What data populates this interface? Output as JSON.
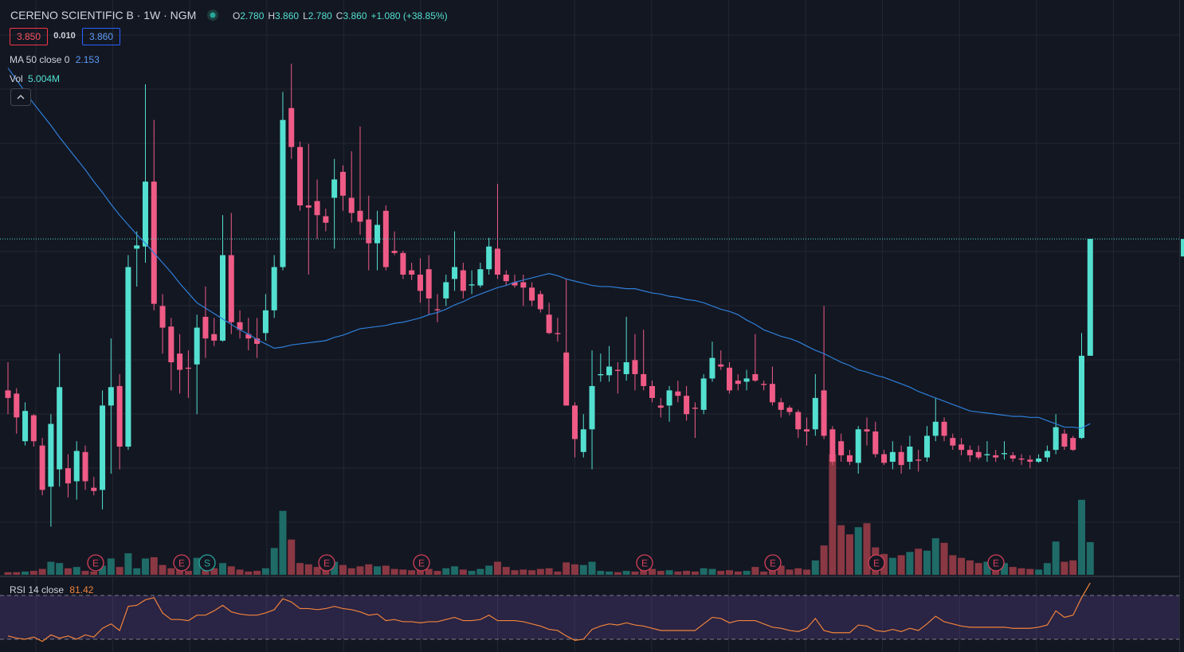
{
  "chart_data": {
    "type": "candlestick",
    "title": "CERENO SCIENTIFIC B · 1W · NGM",
    "ohlc_legend": [
      {
        "label": "O",
        "value": "2.780"
      },
      {
        "label": "H",
        "value": "3.860"
      },
      {
        "label": "L",
        "value": "2.780"
      },
      {
        "label": "C",
        "value": "3.860"
      }
    ],
    "change": "+1.080 (+38.85%)",
    "bid": "3.850",
    "spread": "0.010",
    "ask": "3.860",
    "up_color": "#53e0d0",
    "down_color": "#ef5b86",
    "ylim": [
      0.77,
      6.01
    ],
    "open": [
      2.46,
      2.43,
      1.99,
      2.23,
      1.95,
      1.57,
      1.73,
      1.74,
      1.62,
      1.89,
      1.56,
      1.54,
      2.32,
      2.5,
      1.94,
      3.77,
      3.79,
      4.39,
      3.24,
      3.05,
      2.8,
      2.67,
      2.7,
      3.14,
      2.98,
      2.92,
      3.71,
      3.09,
      2.98,
      2.94,
      2.99,
      3.2,
      3.6,
      5.07,
      4.71,
      4.17,
      4.21,
      4.07,
      4.24,
      4.48,
      4.24,
      4.12,
      4.04,
      3.82,
      4.12,
      3.75,
      3.73,
      3.57,
      3.53,
      3.58,
      3.21,
      3.31,
      3.49,
      3.57,
      3.43,
      3.43,
      3.58,
      3.77,
      3.53,
      3.46,
      3.46,
      3.41,
      3.35,
      3.16,
      2.99,
      2.81,
      2.32,
      1.89,
      2.1,
      2.6,
      2.6,
      2.65,
      2.61,
      2.74,
      2.61,
      2.5,
      2.32,
      2.32,
      2.45,
      2.41,
      2.3,
      2.28,
      2.57,
      2.7,
      2.67,
      2.55,
      2.54,
      2.61,
      2.52,
      2.52,
      2.35,
      2.3,
      2.26,
      2.1,
      2.1,
      2.46,
      2.1,
      1.99,
      1.86,
      1.79,
      2.1,
      2.08,
      1.87,
      1.8,
      1.89,
      1.8,
      1.82,
      1.84,
      2.04,
      2.17,
      2.02,
      1.96,
      1.91,
      1.89,
      1.86,
      1.86,
      1.87,
      1.86,
      1.83,
      1.82,
      1.8,
      1.84,
      1.91,
      2.06,
      2.02,
      2.02,
      2.78
    ],
    "high": [
      2.72,
      2.48,
      2.35,
      2.24,
      2.02,
      2.24,
      2.8,
      1.87,
      1.99,
      1.95,
      1.66,
      2.46,
      2.94,
      2.61,
      3.71,
      3.93,
      5.29,
      4.96,
      3.35,
      3.13,
      2.98,
      2.83,
      3.16,
      3.42,
      3.13,
      4.08,
      4.1,
      3.2,
      3.13,
      3.13,
      3.35,
      3.71,
      5.22,
      5.48,
      4.76,
      4.74,
      4.41,
      4.14,
      4.6,
      4.54,
      4.67,
      4.9,
      4.26,
      4.12,
      4.17,
      3.93,
      3.75,
      3.64,
      3.68,
      3.71,
      3.35,
      3.53,
      3.93,
      3.64,
      3.57,
      3.64,
      3.87,
      4.37,
      3.57,
      3.53,
      3.53,
      3.46,
      3.38,
      3.27,
      3.13,
      3.49,
      2.35,
      2.24,
      2.83,
      2.8,
      2.87,
      2.72,
      3.14,
      2.98,
      3.02,
      2.55,
      2.39,
      2.5,
      2.55,
      2.5,
      2.35,
      2.61,
      2.91,
      2.83,
      2.72,
      2.61,
      2.65,
      2.98,
      2.55,
      2.68,
      2.39,
      2.32,
      2.28,
      2.21,
      2.61,
      3.24,
      2.13,
      2.06,
      1.91,
      2.13,
      2.21,
      2.17,
      1.91,
      1.99,
      1.95,
      2.04,
      1.91,
      2.13,
      2.39,
      2.21,
      2.06,
      2.02,
      1.95,
      1.95,
      1.99,
      1.91,
      1.99,
      1.89,
      1.87,
      1.86,
      1.87,
      1.95,
      2.24,
      2.1,
      2.04,
      2.99,
      3.86
    ],
    "low": [
      2.24,
      2.06,
      1.95,
      1.94,
      1.49,
      1.2,
      1.57,
      1.47,
      1.45,
      1.54,
      1.49,
      1.36,
      1.69,
      1.73,
      1.91,
      3.42,
      3.64,
      3.2,
      2.8,
      2.46,
      2.43,
      2.39,
      2.24,
      2.76,
      2.87,
      2.91,
      2.98,
      2.94,
      2.83,
      2.76,
      2.92,
      3.13,
      3.57,
      4.6,
      4.12,
      3.53,
      3.86,
      3.93,
      3.77,
      4.12,
      4.01,
      3.9,
      3.57,
      3.57,
      3.57,
      3.71,
      3.49,
      3.48,
      3.27,
      3.16,
      3.09,
      3.24,
      3.38,
      3.31,
      3.35,
      3.41,
      3.53,
      3.49,
      3.43,
      3.41,
      3.24,
      3.24,
      3.18,
      2.98,
      2.91,
      2.32,
      1.84,
      1.84,
      1.73,
      2.54,
      2.54,
      2.43,
      2.55,
      2.46,
      2.46,
      2.35,
      2.21,
      2.17,
      2.35,
      2.18,
      2.02,
      2.24,
      2.54,
      2.65,
      2.43,
      2.46,
      2.46,
      2.54,
      2.46,
      2.32,
      2.21,
      2.23,
      2.02,
      1.95,
      2.04,
      2.01,
      1.77,
      1.8,
      1.77,
      1.69,
      1.95,
      1.84,
      1.77,
      1.73,
      1.69,
      1.73,
      1.71,
      1.8,
      1.99,
      1.99,
      1.91,
      1.86,
      1.8,
      1.82,
      1.8,
      1.8,
      1.82,
      1.8,
      1.77,
      1.74,
      1.79,
      1.8,
      1.87,
      1.91,
      1.9,
      2.01,
      2.78
    ],
    "close": [
      2.39,
      2.21,
      2.27,
      1.99,
      1.54,
      2.15,
      2.49,
      1.6,
      1.9,
      1.62,
      1.53,
      2.32,
      2.49,
      1.94,
      3.6,
      3.8,
      4.39,
      3.26,
      3.04,
      2.72,
      2.65,
      2.66,
      3.04,
      2.94,
      2.92,
      3.71,
      3.09,
      3.02,
      2.94,
      2.89,
      3.2,
      3.6,
      4.96,
      4.71,
      4.17,
      4.15,
      4.08,
      4.01,
      4.41,
      4.26,
      4.1,
      4.02,
      3.82,
      3.99,
      3.6,
      3.73,
      3.53,
      3.53,
      3.38,
      3.31,
      3.2,
      3.46,
      3.6,
      3.38,
      3.44,
      3.58,
      3.79,
      3.53,
      3.47,
      3.43,
      3.41,
      3.29,
      3.21,
      2.99,
      2.98,
      2.32,
      2.01,
      2.1,
      2.5,
      2.61,
      2.68,
      2.64,
      2.72,
      2.61,
      2.5,
      2.39,
      2.3,
      2.46,
      2.41,
      2.24,
      2.29,
      2.57,
      2.76,
      2.68,
      2.46,
      2.52,
      2.57,
      2.55,
      2.51,
      2.35,
      2.28,
      2.26,
      2.1,
      2.08,
      2.39,
      2.04,
      1.8,
      1.86,
      1.8,
      2.1,
      2.08,
      1.87,
      1.79,
      1.89,
      1.77,
      1.94,
      1.81,
      2.04,
      2.17,
      2.04,
      1.95,
      1.91,
      1.86,
      1.84,
      1.87,
      1.84,
      1.88,
      1.83,
      1.82,
      1.8,
      1.83,
      1.9,
      2.12,
      1.94,
      1.91,
      2.78,
      3.86
    ],
    "ma": {
      "name": "MA 50 close 0",
      "color": "#2f7fd8",
      "values": [
        5.44,
        5.33,
        5.22,
        5.11,
        5.01,
        4.91,
        4.8,
        4.7,
        4.6,
        4.5,
        4.39,
        4.29,
        4.18,
        4.08,
        3.99,
        3.9,
        3.82,
        3.73,
        3.64,
        3.55,
        3.45,
        3.36,
        3.27,
        3.22,
        3.17,
        3.12,
        3.07,
        3.02,
        2.98,
        2.93,
        2.89,
        2.85,
        2.86,
        2.88,
        2.89,
        2.9,
        2.91,
        2.92,
        2.95,
        2.97,
        3.0,
        3.03,
        3.04,
        3.05,
        3.06,
        3.08,
        3.09,
        3.11,
        3.13,
        3.16,
        3.18,
        3.21,
        3.25,
        3.28,
        3.32,
        3.35,
        3.38,
        3.41,
        3.43,
        3.46,
        3.48,
        3.5,
        3.52,
        3.54,
        3.52,
        3.49,
        3.47,
        3.45,
        3.43,
        3.42,
        3.42,
        3.41,
        3.4,
        3.4,
        3.38,
        3.36,
        3.35,
        3.33,
        3.32,
        3.3,
        3.29,
        3.27,
        3.24,
        3.21,
        3.19,
        3.16,
        3.11,
        3.07,
        3.02,
        2.99,
        2.96,
        2.94,
        2.91,
        2.87,
        2.83,
        2.8,
        2.76,
        2.72,
        2.69,
        2.65,
        2.63,
        2.6,
        2.58,
        2.55,
        2.52,
        2.49,
        2.45,
        2.42,
        2.39,
        2.36,
        2.33,
        2.3,
        2.27,
        2.26,
        2.25,
        2.24,
        2.23,
        2.22,
        2.22,
        2.21,
        2.21,
        2.18,
        2.15,
        2.12,
        2.12,
        2.11,
        2.153
      ]
    },
    "volume": {
      "name": "Vol",
      "ylim": [
        0,
        21
      ],
      "up_color": "#1f6b67",
      "down_color": "#8a3843",
      "value_label": "5.004M",
      "values": [
        0.4,
        0.4,
        0.5,
        0.6,
        0.9,
        2.0,
        1.8,
        1.0,
        1.2,
        0.6,
        0.5,
        1.4,
        2.5,
        1.2,
        3.3,
        1.0,
        2.5,
        2.7,
        1.5,
        1.0,
        0.8,
        0.6,
        2.6,
        1.2,
        1.0,
        1.8,
        1.3,
        0.8,
        0.5,
        0.6,
        1.0,
        4.1,
        9.8,
        5.4,
        1.8,
        1.6,
        1.2,
        0.9,
        2.0,
        1.5,
        1.0,
        1.3,
        1.6,
        1.3,
        1.4,
        0.9,
        0.8,
        0.7,
        1.0,
        0.9,
        0.6,
        1.0,
        1.3,
        0.8,
        0.6,
        0.9,
        1.4,
        2.0,
        1.2,
        0.7,
        0.8,
        0.7,
        0.9,
        1.0,
        0.5,
        1.9,
        1.6,
        1.5,
        2.0,
        0.6,
        0.5,
        0.4,
        0.6,
        0.5,
        0.7,
        0.9,
        0.6,
        0.7,
        0.5,
        0.6,
        0.5,
        1.0,
        0.9,
        0.6,
        0.7,
        0.5,
        0.6,
        1.2,
        0.5,
        1.5,
        1.4,
        0.8,
        1.0,
        0.8,
        2.2,
        4.5,
        18.5,
        7.6,
        6.2,
        7.3,
        7.9,
        4.2,
        3.2,
        2.6,
        3.0,
        3.5,
        4.0,
        3.7,
        5.6,
        4.9,
        3.0,
        2.6,
        2.2,
        1.8,
        2.0,
        1.6,
        1.8,
        1.2,
        1.0,
        0.9,
        0.8,
        1.8,
        5.1,
        2.0,
        2.2,
        11.5,
        5.004
      ]
    },
    "events": [
      "E",
      "E",
      "S",
      "E",
      "E",
      "E",
      "E",
      "E",
      "E"
    ],
    "rsi": {
      "name": "RSI 14 close",
      "color": "#f0833a",
      "ylim": [
        19.8,
        84.5
      ],
      "bands": [
        70,
        30
      ],
      "values": [
        33,
        31,
        30,
        32,
        28,
        34,
        31,
        33,
        30,
        34,
        32,
        40,
        44,
        38,
        60,
        61,
        66,
        68,
        54,
        48,
        48,
        47,
        52,
        52,
        56,
        61,
        55,
        53,
        52,
        52,
        54,
        57,
        67,
        64,
        58,
        58,
        57,
        58,
        60,
        58,
        57,
        55,
        52,
        53,
        47,
        48,
        46,
        46,
        45,
        46,
        46,
        48,
        50,
        47,
        47,
        48,
        52,
        47,
        47,
        47,
        46,
        44,
        42,
        39,
        38,
        33,
        29,
        30,
        39,
        42,
        44,
        43,
        45,
        43,
        42,
        40,
        38,
        38,
        38,
        38,
        38,
        44,
        50,
        49,
        45,
        47,
        47,
        47,
        44,
        41,
        40,
        38,
        37,
        40,
        49,
        38,
        36,
        36,
        36,
        43,
        42,
        38,
        37,
        39,
        37,
        40,
        38,
        44,
        51,
        46,
        44,
        42,
        41,
        41,
        41,
        41,
        41,
        40,
        40,
        40,
        41,
        43,
        56,
        50,
        52,
        68,
        81.42
      ]
    }
  }
}
